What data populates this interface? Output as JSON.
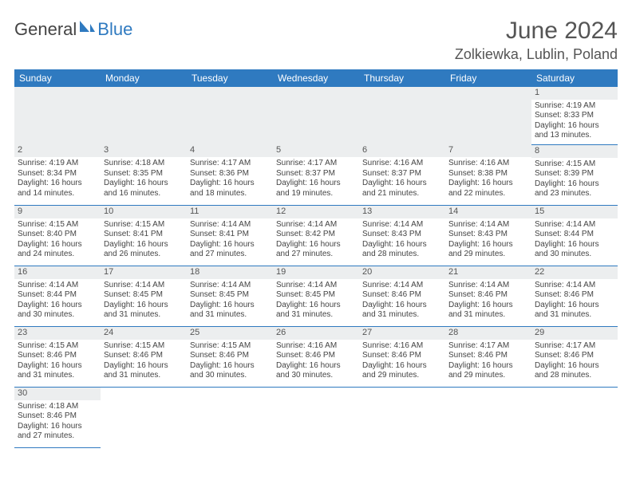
{
  "brand": {
    "part1": "General",
    "part2": "Blue",
    "logo_color": "#2f7ac0"
  },
  "header": {
    "month": "June 2024",
    "location": "Zolkiewka, Lublin, Poland"
  },
  "colors": {
    "header_bg": "#2f7ac0",
    "header_fg": "#ffffff",
    "daybar": "#eceeef",
    "rule": "#2f7ac0",
    "text": "#444444"
  },
  "weekdays": [
    "Sunday",
    "Monday",
    "Tuesday",
    "Wednesday",
    "Thursday",
    "Friday",
    "Saturday"
  ],
  "weeks": [
    [
      null,
      null,
      null,
      null,
      null,
      null,
      {
        "n": "1",
        "sr": "4:19 AM",
        "ss": "8:33 PM",
        "dl": "16 hours and 13 minutes."
      }
    ],
    [
      {
        "n": "2",
        "sr": "4:19 AM",
        "ss": "8:34 PM",
        "dl": "16 hours and 14 minutes."
      },
      {
        "n": "3",
        "sr": "4:18 AM",
        "ss": "8:35 PM",
        "dl": "16 hours and 16 minutes."
      },
      {
        "n": "4",
        "sr": "4:17 AM",
        "ss": "8:36 PM",
        "dl": "16 hours and 18 minutes."
      },
      {
        "n": "5",
        "sr": "4:17 AM",
        "ss": "8:37 PM",
        "dl": "16 hours and 19 minutes."
      },
      {
        "n": "6",
        "sr": "4:16 AM",
        "ss": "8:37 PM",
        "dl": "16 hours and 21 minutes."
      },
      {
        "n": "7",
        "sr": "4:16 AM",
        "ss": "8:38 PM",
        "dl": "16 hours and 22 minutes."
      },
      {
        "n": "8",
        "sr": "4:15 AM",
        "ss": "8:39 PM",
        "dl": "16 hours and 23 minutes."
      }
    ],
    [
      {
        "n": "9",
        "sr": "4:15 AM",
        "ss": "8:40 PM",
        "dl": "16 hours and 24 minutes."
      },
      {
        "n": "10",
        "sr": "4:15 AM",
        "ss": "8:41 PM",
        "dl": "16 hours and 26 minutes."
      },
      {
        "n": "11",
        "sr": "4:14 AM",
        "ss": "8:41 PM",
        "dl": "16 hours and 27 minutes."
      },
      {
        "n": "12",
        "sr": "4:14 AM",
        "ss": "8:42 PM",
        "dl": "16 hours and 27 minutes."
      },
      {
        "n": "13",
        "sr": "4:14 AM",
        "ss": "8:43 PM",
        "dl": "16 hours and 28 minutes."
      },
      {
        "n": "14",
        "sr": "4:14 AM",
        "ss": "8:43 PM",
        "dl": "16 hours and 29 minutes."
      },
      {
        "n": "15",
        "sr": "4:14 AM",
        "ss": "8:44 PM",
        "dl": "16 hours and 30 minutes."
      }
    ],
    [
      {
        "n": "16",
        "sr": "4:14 AM",
        "ss": "8:44 PM",
        "dl": "16 hours and 30 minutes."
      },
      {
        "n": "17",
        "sr": "4:14 AM",
        "ss": "8:45 PM",
        "dl": "16 hours and 31 minutes."
      },
      {
        "n": "18",
        "sr": "4:14 AM",
        "ss": "8:45 PM",
        "dl": "16 hours and 31 minutes."
      },
      {
        "n": "19",
        "sr": "4:14 AM",
        "ss": "8:45 PM",
        "dl": "16 hours and 31 minutes."
      },
      {
        "n": "20",
        "sr": "4:14 AM",
        "ss": "8:46 PM",
        "dl": "16 hours and 31 minutes."
      },
      {
        "n": "21",
        "sr": "4:14 AM",
        "ss": "8:46 PM",
        "dl": "16 hours and 31 minutes."
      },
      {
        "n": "22",
        "sr": "4:14 AM",
        "ss": "8:46 PM",
        "dl": "16 hours and 31 minutes."
      }
    ],
    [
      {
        "n": "23",
        "sr": "4:15 AM",
        "ss": "8:46 PM",
        "dl": "16 hours and 31 minutes."
      },
      {
        "n": "24",
        "sr": "4:15 AM",
        "ss": "8:46 PM",
        "dl": "16 hours and 31 minutes."
      },
      {
        "n": "25",
        "sr": "4:15 AM",
        "ss": "8:46 PM",
        "dl": "16 hours and 30 minutes."
      },
      {
        "n": "26",
        "sr": "4:16 AM",
        "ss": "8:46 PM",
        "dl": "16 hours and 30 minutes."
      },
      {
        "n": "27",
        "sr": "4:16 AM",
        "ss": "8:46 PM",
        "dl": "16 hours and 29 minutes."
      },
      {
        "n": "28",
        "sr": "4:17 AM",
        "ss": "8:46 PM",
        "dl": "16 hours and 29 minutes."
      },
      {
        "n": "29",
        "sr": "4:17 AM",
        "ss": "8:46 PM",
        "dl": "16 hours and 28 minutes."
      }
    ],
    [
      {
        "n": "30",
        "sr": "4:18 AM",
        "ss": "8:46 PM",
        "dl": "16 hours and 27 minutes."
      },
      null,
      null,
      null,
      null,
      null,
      null
    ]
  ],
  "labels": {
    "sunrise": "Sunrise:",
    "sunset": "Sunset:",
    "daylight": "Daylight:"
  }
}
